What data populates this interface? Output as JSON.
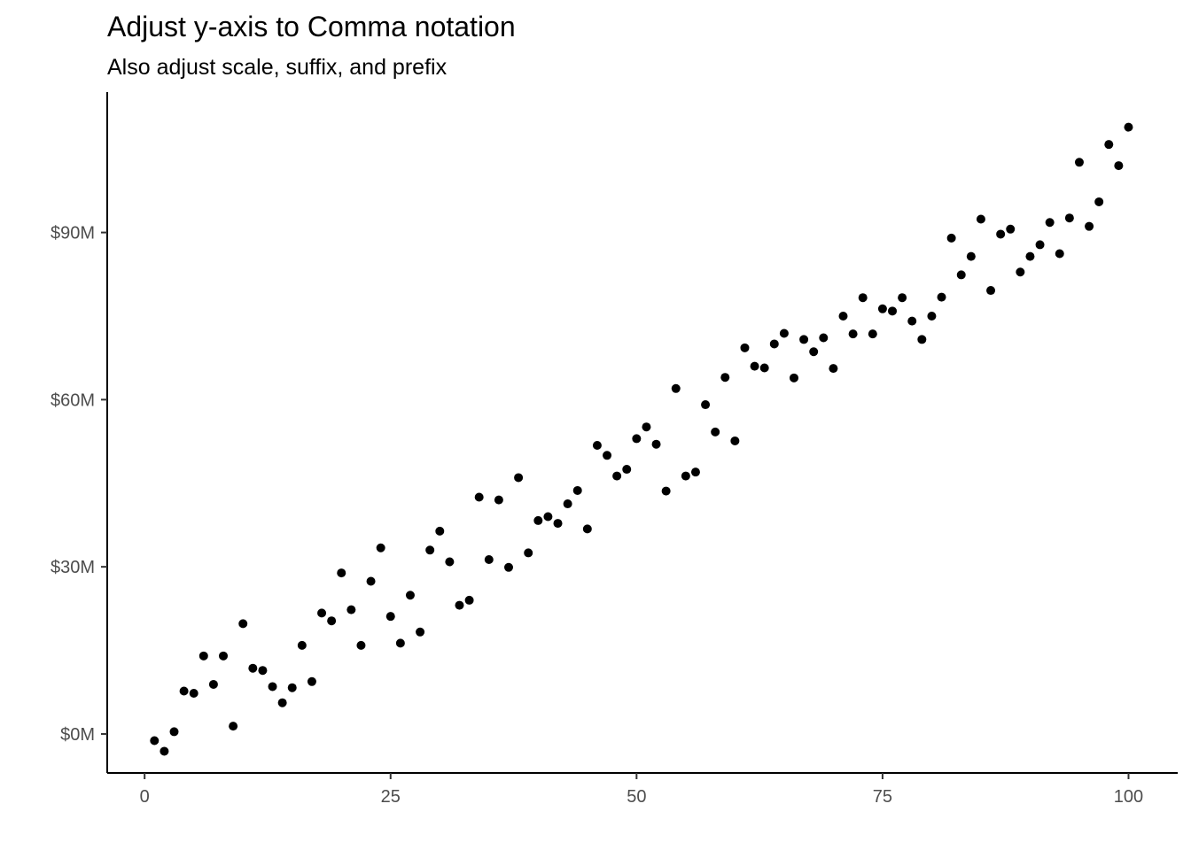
{
  "chart_data": {
    "type": "scatter",
    "title": "Adjust y-axis to Comma notation",
    "subtitle": "Also adjust scale, suffix, and prefix",
    "xlabel": "",
    "ylabel": "",
    "xlim": [
      -3.8,
      105.0
    ],
    "ylim": [
      -7.0,
      115.2
    ],
    "x_ticks": [
      0,
      25,
      50,
      75,
      100
    ],
    "x_tick_labels": [
      "0",
      "25",
      "50",
      "75",
      "100"
    ],
    "y_ticks": [
      0,
      30,
      60,
      90
    ],
    "y_tick_labels": [
      "$0M",
      "$30M",
      "$60M",
      "$90M"
    ],
    "y_unit": "millions USD",
    "grid": false,
    "legend": "none",
    "point_color": "#000000",
    "x": [
      1,
      2,
      3,
      4,
      5,
      6,
      7,
      8,
      9,
      10,
      11,
      12,
      13,
      14,
      15,
      16,
      17,
      18,
      19,
      20,
      21,
      22,
      23,
      24,
      25,
      26,
      27,
      28,
      29,
      30,
      31,
      32,
      33,
      34,
      35,
      36,
      37,
      38,
      39,
      40,
      41,
      42,
      43,
      44,
      45,
      46,
      47,
      48,
      49,
      50,
      51,
      52,
      53,
      54,
      55,
      56,
      57,
      58,
      59,
      60,
      61,
      62,
      63,
      64,
      65,
      66,
      67,
      68,
      69,
      70,
      71,
      72,
      73,
      74,
      75,
      76,
      77,
      78,
      79,
      80,
      81,
      82,
      83,
      84,
      85,
      86,
      87,
      88,
      89,
      90,
      91,
      92,
      93,
      94,
      95,
      96,
      97,
      98,
      99,
      100
    ],
    "y": [
      -1.2,
      -3.1,
      0.4,
      7.7,
      7.3,
      14.0,
      8.9,
      14.0,
      1.4,
      19.8,
      11.8,
      11.4,
      8.5,
      5.6,
      8.3,
      15.9,
      9.4,
      21.7,
      20.3,
      28.9,
      22.3,
      15.9,
      27.4,
      33.4,
      21.1,
      16.3,
      24.9,
      18.3,
      33.0,
      36.4,
      30.9,
      23.1,
      24.0,
      42.5,
      31.3,
      42.0,
      29.9,
      46.0,
      32.5,
      38.3,
      39.0,
      37.8,
      41.3,
      43.7,
      36.8,
      51.8,
      50.0,
      46.3,
      47.5,
      53.0,
      55.1,
      52.0,
      43.6,
      62.0,
      46.3,
      47.0,
      59.1,
      54.2,
      64.0,
      52.6,
      69.3,
      66.0,
      65.7,
      70.0,
      71.9,
      63.9,
      70.8,
      68.6,
      71.1,
      65.6,
      75.0,
      71.8,
      78.3,
      71.8,
      76.3,
      75.9,
      78.3,
      74.1,
      70.8,
      75.0,
      78.4,
      89.0,
      82.4,
      85.7,
      92.4,
      79.6,
      89.7,
      90.6,
      82.9,
      85.7,
      87.8,
      91.8,
      86.2,
      92.6,
      102.6,
      91.1,
      95.5,
      105.8,
      102.0,
      108.9
    ]
  }
}
